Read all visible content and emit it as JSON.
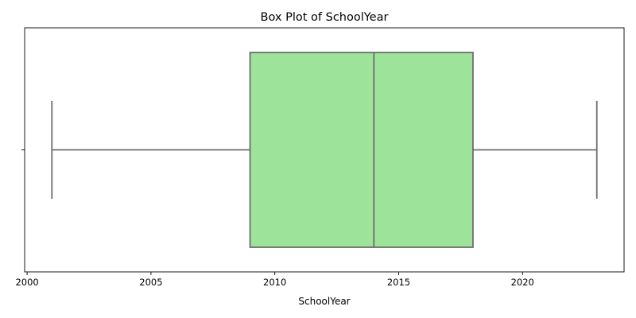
{
  "chart_data": {
    "type": "box",
    "title": "Box Plot of SchoolYear",
    "xlabel": "SchoolYear",
    "ylabel": "",
    "orientation": "horizontal",
    "xlim": [
      1999.9,
      2024.1
    ],
    "xticks": [
      2000,
      2005,
      2010,
      2015,
      2020
    ],
    "grid": false,
    "legend": false,
    "series": [
      {
        "whisker_low": 2001,
        "q1": 2009,
        "median": 2014,
        "q3": 2018,
        "whisker_high": 2023
      }
    ],
    "colors": {
      "box_fill": "#9de39a",
      "line": "#6e6e6e",
      "axes": "#000000"
    }
  }
}
